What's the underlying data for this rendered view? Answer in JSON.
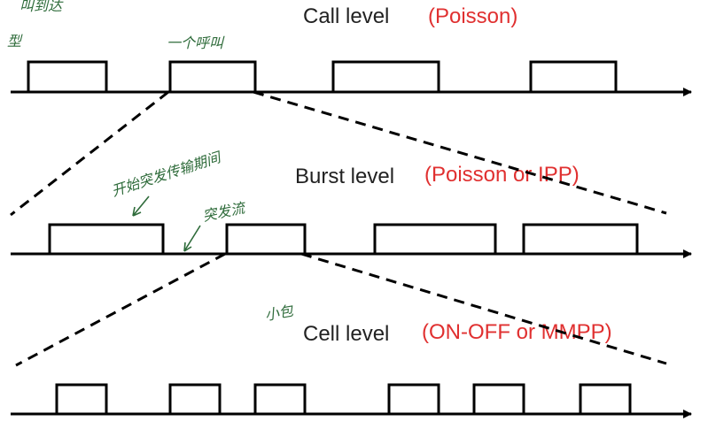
{
  "colors": {
    "line": "#000000",
    "title": "#222222",
    "model": "#e03030",
    "note": "#2e6b3a"
  },
  "levels": [
    {
      "title": "Call level",
      "model": "(Poisson)",
      "pulses": [
        [
          0.04,
          0.15
        ],
        [
          0.24,
          0.36
        ],
        [
          0.47,
          0.62
        ],
        [
          0.75,
          0.87
        ]
      ]
    },
    {
      "title": "Burst level",
      "model": "(Poisson or IPP)",
      "pulses": [
        [
          0.07,
          0.23
        ],
        [
          0.32,
          0.43
        ],
        [
          0.53,
          0.7
        ],
        [
          0.74,
          0.9
        ]
      ]
    },
    {
      "title": "Cell level",
      "model": "(ON-OFF or MMPP)",
      "pulses": [
        [
          0.08,
          0.15
        ],
        [
          0.24,
          0.31
        ],
        [
          0.36,
          0.43
        ],
        [
          0.55,
          0.62
        ],
        [
          0.67,
          0.74
        ],
        [
          0.82,
          0.89
        ]
      ]
    }
  ],
  "annotations": [
    {
      "text": "一个呼叫"
    },
    {
      "text": "开始突发传输期间"
    },
    {
      "text": "突发流"
    },
    {
      "text": "小包"
    },
    {
      "text": "型"
    },
    {
      "text": "叫到达"
    }
  ]
}
